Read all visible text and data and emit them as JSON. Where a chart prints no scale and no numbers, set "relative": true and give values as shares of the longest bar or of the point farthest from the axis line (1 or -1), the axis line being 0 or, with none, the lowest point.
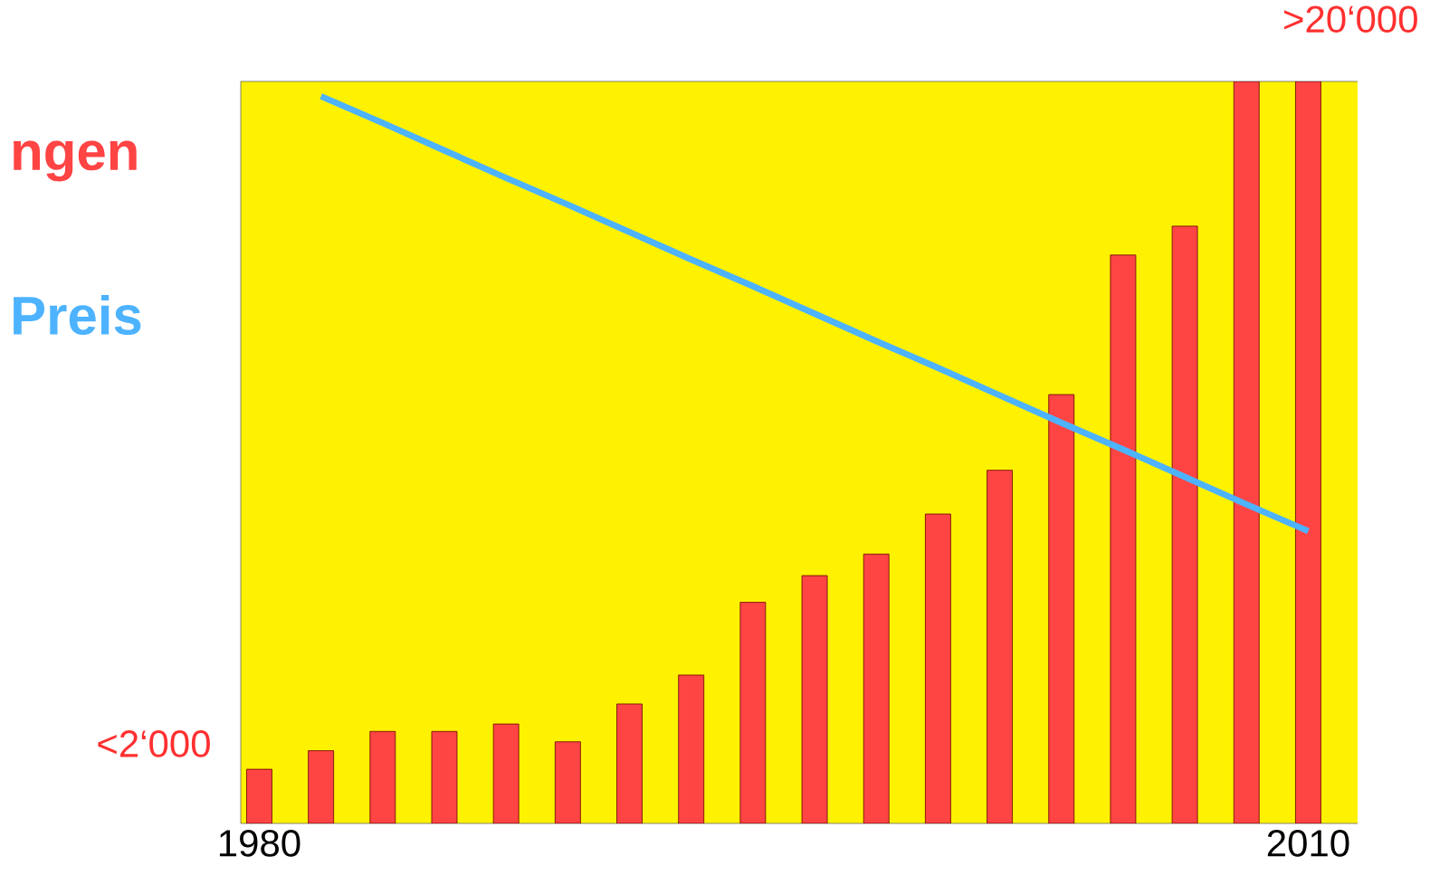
{
  "chart_data": {
    "type": "bar",
    "relative": true,
    "categories": [
      "1980",
      null,
      null,
      null,
      null,
      null,
      null,
      null,
      null,
      null,
      null,
      null,
      null,
      null,
      null,
      null,
      null,
      "2010"
    ],
    "series": [
      {
        "name": "ngen",
        "color": "#ff4444",
        "values": [
          0.073,
          0.098,
          0.124,
          0.124,
          0.134,
          0.11,
          0.161,
          0.2,
          0.298,
          0.334,
          0.363,
          0.417,
          0.476,
          0.578,
          0.766,
          0.805,
          1,
          1
        ]
      },
      {
        "name": "Preis",
        "type": "line",
        "color": "#4db3ff",
        "values": [
          null,
          0.98,
          0.944,
          0.907,
          0.87,
          0.834,
          0.797,
          0.76,
          0.724,
          0.687,
          0.65,
          0.614,
          0.577,
          0.54,
          0.504,
          0.467,
          0.43,
          0.394
        ]
      }
    ],
    "annotations": [
      ">20‘000",
      "<2‘000"
    ]
  }
}
